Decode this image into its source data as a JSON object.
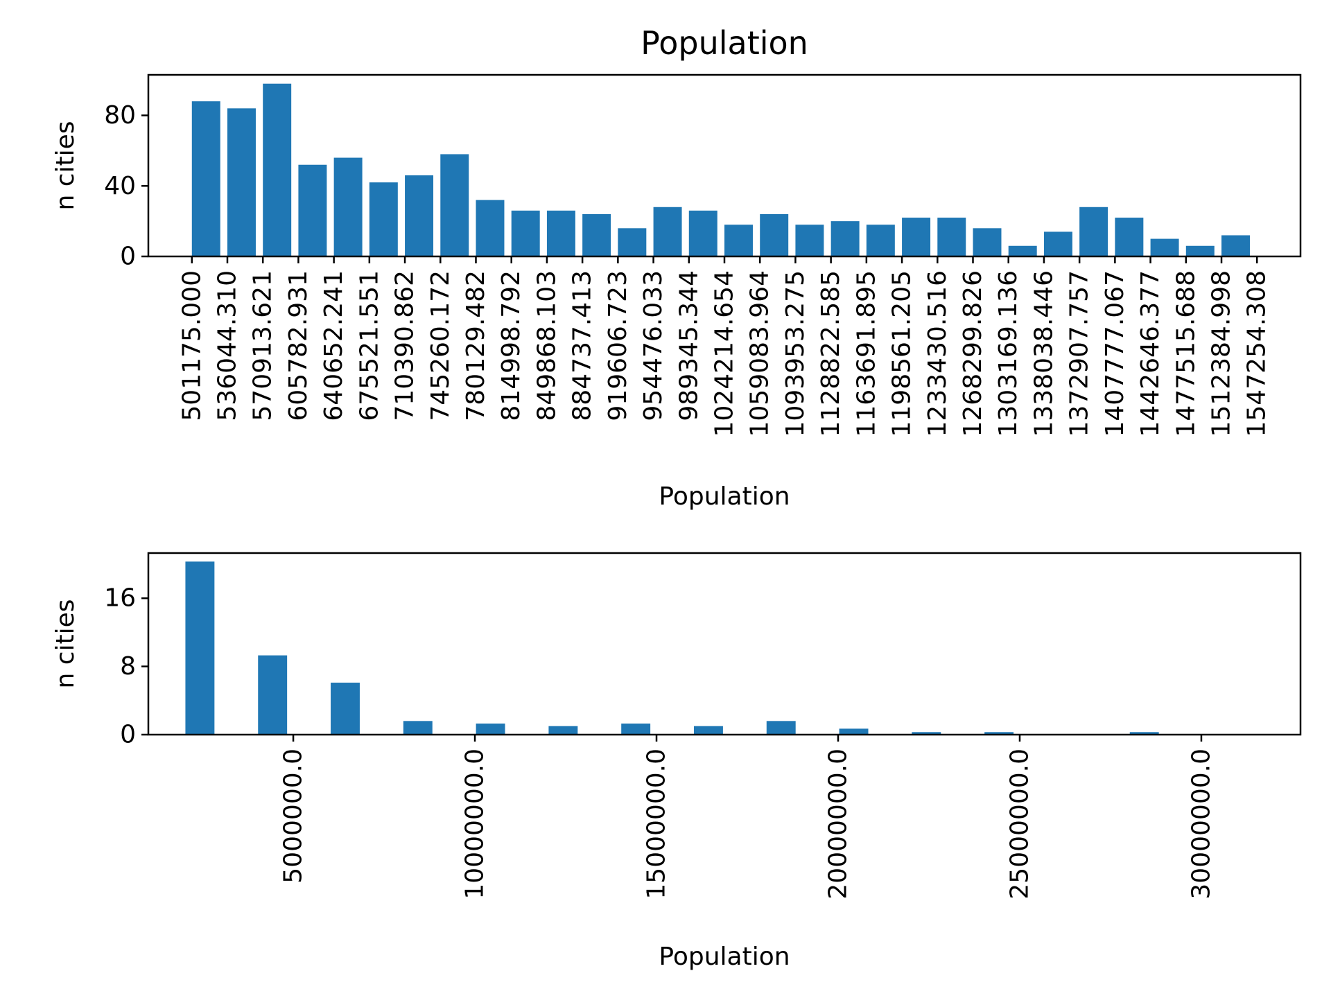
{
  "chart_data": {
    "title": "Population",
    "color": "#1f77b4",
    "subplots": [
      {
        "type": "bar",
        "xlabel": "Population",
        "ylabel": "n cities",
        "x_domain": [
          458436.1,
          1589993.2
        ],
        "ylim": [
          0,
          103
        ],
        "bin_width": 34869.31,
        "bin_left_edges": [
          501175.0,
          536044.31,
          570913.621,
          605782.931,
          640652.241,
          675521.551,
          710390.862,
          745260.172,
          780129.482,
          814998.792,
          849868.103,
          884737.413,
          919606.723,
          954476.033,
          989345.344,
          1024214.654,
          1059083.964,
          1093953.275,
          1128822.585,
          1163691.895,
          1198561.205,
          1233430.516,
          1268299.826,
          1303169.136,
          1338038.446,
          1372907.757,
          1407777.067,
          1442646.377,
          1477515.688,
          1512384.998
        ],
        "values": [
          88,
          84,
          98,
          52,
          56,
          42,
          46,
          58,
          32,
          26,
          26,
          24,
          16,
          28,
          26,
          18,
          24,
          18,
          20,
          18,
          22,
          22,
          16,
          6,
          14,
          28,
          22,
          10,
          6,
          12
        ],
        "x_ticks": [
          501175.0,
          536044.31,
          570913.621,
          605782.931,
          640652.241,
          675521.551,
          710390.862,
          745260.172,
          780129.482,
          814998.792,
          849868.103,
          884737.413,
          919606.723,
          954476.033,
          989345.344,
          1024214.654,
          1059083.964,
          1093953.275,
          1128822.585,
          1163691.895,
          1198561.205,
          1233430.516,
          1268299.826,
          1303169.136,
          1338038.446,
          1372907.757,
          1407777.067,
          1442646.377,
          1477515.688,
          1512384.998,
          1547254.308
        ],
        "x_tick_labels": [
          "501175.000",
          "536044.310",
          "570913.621",
          "605782.931",
          "640652.241",
          "675521.551",
          "710390.862",
          "745260.172",
          "780129.482",
          "814998.792",
          "849868.103",
          "884737.413",
          "919606.723",
          "954476.033",
          "989345.344",
          "1024214.654",
          "1059083.964",
          "1093953.275",
          "1128822.585",
          "1163691.895",
          "1198561.205",
          "1233430.516",
          "1268299.826",
          "1303169.136",
          "1338038.446",
          "1372907.757",
          "1407777.067",
          "1442646.377",
          "1477515.688",
          "1512384.998",
          "1547254.308"
        ],
        "y_ticks": [
          0,
          40,
          80
        ],
        "y_tick_labels": [
          "0",
          "40",
          "80"
        ]
      },
      {
        "type": "bar",
        "xlabel": "Population",
        "ylabel": "n cities",
        "x_domain": [
          1010000,
          32730000
        ],
        "ylim": [
          0,
          21.3
        ],
        "bin_width": 1000000,
        "bin_left_edges": [
          2030000,
          4030000,
          6030000,
          8030000,
          10030000,
          12030000,
          14030000,
          16030000,
          18030000,
          20030000,
          22030000,
          24030000,
          26030000,
          28030000,
          30030000
        ],
        "values": [
          20.3,
          9.3,
          6.1,
          1.6,
          1.3,
          1.0,
          1.3,
          1.0,
          1.6,
          0.7,
          0.3,
          0.3,
          0,
          0.3,
          0
        ],
        "x_ticks": [
          5000000,
          10000000,
          15000000,
          20000000,
          25000000,
          30000000
        ],
        "x_tick_labels": [
          "5000000.0",
          "10000000.0",
          "15000000.0",
          "20000000.0",
          "25000000.0",
          "30000000.0"
        ],
        "y_ticks": [
          0,
          8,
          16
        ],
        "y_tick_labels": [
          "0",
          "8",
          "16"
        ]
      }
    ]
  }
}
